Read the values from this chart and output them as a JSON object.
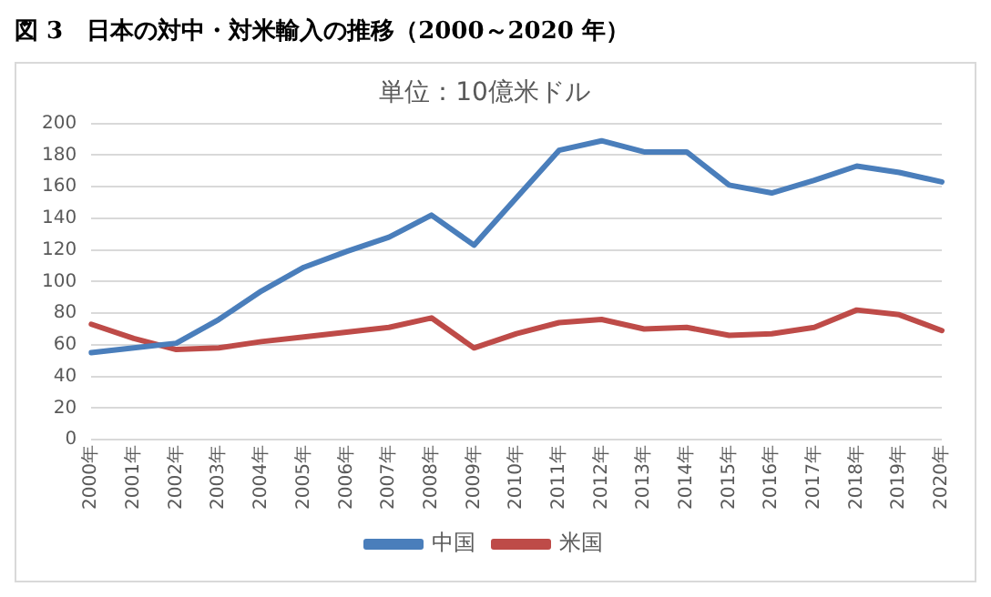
{
  "chart_data": {
    "type": "line",
    "title": "図 3　日本の対中・対米輸入の推移（2000～2020 年）",
    "subtitle": "単位：10億米ドル",
    "categories": [
      "2000年",
      "2001年",
      "2002年",
      "2003年",
      "2004年",
      "2005年",
      "2006年",
      "2007年",
      "2008年",
      "2009年",
      "2010年",
      "2011年",
      "2012年",
      "2013年",
      "2014年",
      "2015年",
      "2016年",
      "2017年",
      "2018年",
      "2019年",
      "2020年"
    ],
    "series": [
      {
        "name": "中国",
        "color": "#4a7ebb",
        "values": [
          55,
          58,
          61,
          76,
          94,
          109,
          119,
          128,
          142,
          123,
          153,
          183,
          189,
          182,
          182,
          161,
          156,
          164,
          173,
          169,
          163
        ]
      },
      {
        "name": "米国",
        "color": "#be4b48",
        "values": [
          73,
          64,
          57,
          58,
          62,
          65,
          68,
          71,
          77,
          58,
          67,
          74,
          76,
          70,
          71,
          66,
          67,
          71,
          82,
          79,
          69
        ]
      }
    ],
    "ylim": [
      0,
      200
    ],
    "yticks": [
      0,
      20,
      40,
      60,
      80,
      100,
      120,
      140,
      160,
      180,
      200
    ],
    "grid": "y",
    "legend": "bottom",
    "marker": "none",
    "line_style": "solid"
  }
}
